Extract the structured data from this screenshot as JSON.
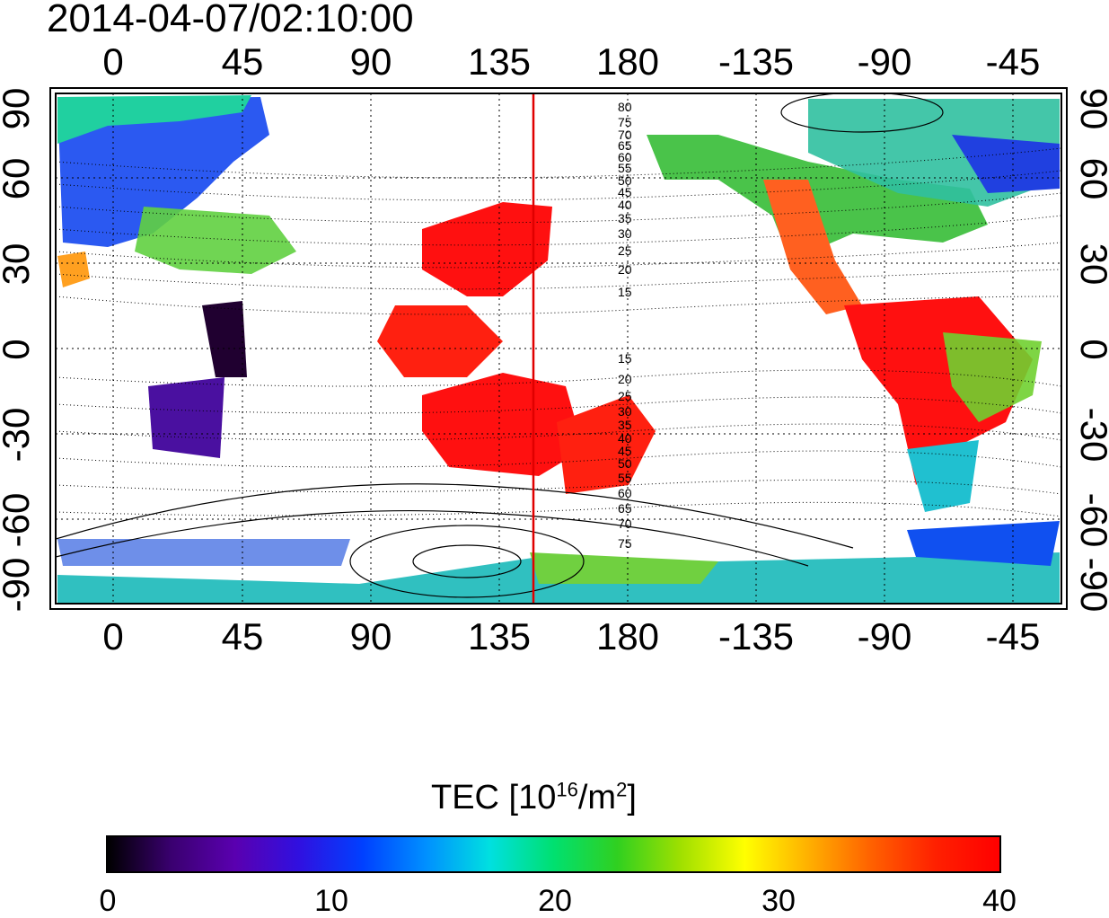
{
  "title": "2014-04-07/02:10:00",
  "map": {
    "top_lon_labels": [
      "0",
      "45",
      "90",
      "135",
      "180",
      "-135",
      "-90",
      "-45"
    ],
    "bottom_lon_labels": [
      "0",
      "45",
      "90",
      "135",
      "180",
      "-135",
      "-90",
      "-45"
    ],
    "left_lat_labels": [
      "90",
      "60",
      "30",
      "0",
      "-30",
      "-60",
      "-90"
    ],
    "right_lat_labels": [
      "90",
      "60",
      "30",
      "0",
      "-30",
      "-60",
      "-90"
    ],
    "lon_ticks_deg": [
      0,
      45,
      90,
      135,
      180,
      225,
      270,
      315
    ],
    "lat_ticks_deg": [
      90,
      60,
      30,
      0,
      -30,
      -60,
      -90
    ],
    "lon_range_deg": [
      -20,
      340
    ],
    "lat_range_deg": [
      -90,
      90
    ],
    "meridian_marker_lon_deg": 148,
    "meridian_marker_color": "#e00000",
    "north_contour_labels": [
      "80",
      "75",
      "70",
      "65",
      "60",
      "55",
      "50",
      "45",
      "40",
      "35",
      "30",
      "25",
      "20",
      "15"
    ],
    "south_contour_labels": [
      "15",
      "20",
      "25",
      "30",
      "35",
      "40",
      "45",
      "50",
      "55",
      "60",
      "65",
      "70",
      "75"
    ],
    "grid": "dotted"
  },
  "colorbar": {
    "title_main": "TEC  [10",
    "title_sup1": "16",
    "title_mid": "/m",
    "title_sup2": "2",
    "title_end": "]",
    "ticks": [
      "0",
      "10",
      "20",
      "30",
      "40"
    ],
    "range": [
      0,
      40
    ],
    "colors": [
      "#000000",
      "#3a0070",
      "#5a00b0",
      "#3010e0",
      "#0040ff",
      "#0090ff",
      "#00e0e0",
      "#00e070",
      "#30d020",
      "#a0e000",
      "#ffff00",
      "#ffb000",
      "#ff6000",
      "#ff2000",
      "#ff0000"
    ]
  }
}
